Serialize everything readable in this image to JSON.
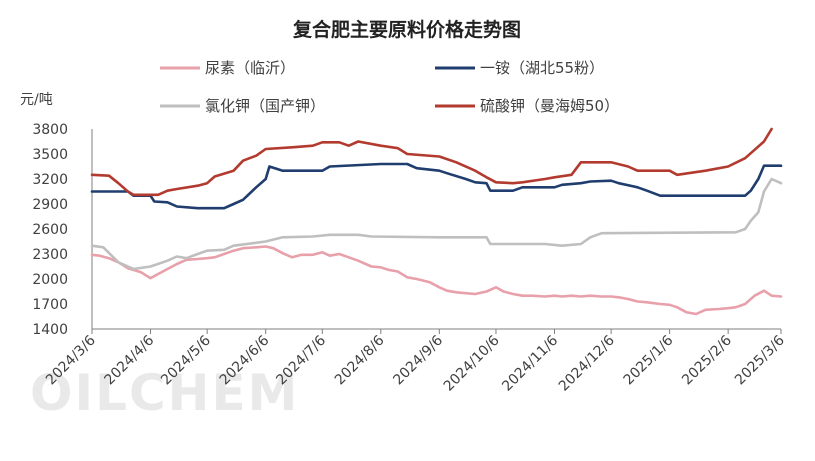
{
  "chart_data": {
    "type": "line",
    "title": "复合肥主要原料价格走势图",
    "ylabel": "元/吨",
    "ylim": [
      1400,
      3800
    ],
    "yticks": [
      1400,
      1700,
      2000,
      2300,
      2600,
      2900,
      3200,
      3500,
      3800
    ],
    "xlim": [
      "2024-03-06",
      "2025-03-06"
    ],
    "xticks": [
      "2024/3/6",
      "2024/4/6",
      "2024/5/6",
      "2024/6/6",
      "2024/7/6",
      "2024/8/6",
      "2024/9/6",
      "2024/10/6",
      "2024/11/6",
      "2024/12/6",
      "2025/1/6",
      "2025/2/6",
      "2025/3/6"
    ],
    "legend_position": "top",
    "grid": false,
    "watermark": "OILCHEM",
    "series": [
      {
        "name": "尿素（临沂）",
        "color": "#e8a0aa",
        "points": [
          [
            "2024-03-06",
            2290
          ],
          [
            "2024-03-10",
            2280
          ],
          [
            "2024-03-15",
            2250
          ],
          [
            "2024-03-20",
            2200
          ],
          [
            "2024-03-25",
            2130
          ],
          [
            "2024-04-01",
            2080
          ],
          [
            "2024-04-06",
            2010
          ],
          [
            "2024-04-10",
            2060
          ],
          [
            "2024-04-15",
            2120
          ],
          [
            "2024-04-20",
            2180
          ],
          [
            "2024-04-25",
            2230
          ],
          [
            "2024-05-01",
            2240
          ],
          [
            "2024-05-06",
            2250
          ],
          [
            "2024-05-10",
            2260
          ],
          [
            "2024-05-15",
            2300
          ],
          [
            "2024-05-20",
            2340
          ],
          [
            "2024-05-25",
            2370
          ],
          [
            "2024-06-01",
            2380
          ],
          [
            "2024-06-06",
            2390
          ],
          [
            "2024-06-10",
            2370
          ],
          [
            "2024-06-15",
            2310
          ],
          [
            "2024-06-20",
            2260
          ],
          [
            "2024-06-25",
            2290
          ],
          [
            "2024-07-01",
            2290
          ],
          [
            "2024-07-06",
            2320
          ],
          [
            "2024-07-10",
            2280
          ],
          [
            "2024-07-15",
            2300
          ],
          [
            "2024-07-20",
            2260
          ],
          [
            "2024-07-25",
            2220
          ],
          [
            "2024-08-01",
            2150
          ],
          [
            "2024-08-06",
            2140
          ],
          [
            "2024-08-10",
            2110
          ],
          [
            "2024-08-15",
            2090
          ],
          [
            "2024-08-20",
            2020
          ],
          [
            "2024-08-25",
            2000
          ],
          [
            "2024-09-01",
            1960
          ],
          [
            "2024-09-06",
            1900
          ],
          [
            "2024-09-10",
            1860
          ],
          [
            "2024-09-15",
            1840
          ],
          [
            "2024-09-20",
            1830
          ],
          [
            "2024-09-25",
            1820
          ],
          [
            "2024-10-01",
            1850
          ],
          [
            "2024-10-06",
            1900
          ],
          [
            "2024-10-10",
            1850
          ],
          [
            "2024-10-15",
            1820
          ],
          [
            "2024-10-20",
            1800
          ],
          [
            "2024-10-25",
            1800
          ],
          [
            "2024-11-01",
            1790
          ],
          [
            "2024-11-06",
            1800
          ],
          [
            "2024-11-10",
            1790
          ],
          [
            "2024-11-15",
            1800
          ],
          [
            "2024-11-20",
            1790
          ],
          [
            "2024-11-25",
            1800
          ],
          [
            "2024-12-01",
            1790
          ],
          [
            "2024-12-06",
            1790
          ],
          [
            "2024-12-10",
            1780
          ],
          [
            "2024-12-15",
            1760
          ],
          [
            "2024-12-20",
            1730
          ],
          [
            "2024-12-25",
            1720
          ],
          [
            "2025-01-01",
            1700
          ],
          [
            "2025-01-06",
            1690
          ],
          [
            "2025-01-10",
            1660
          ],
          [
            "2025-01-15",
            1600
          ],
          [
            "2025-01-20",
            1580
          ],
          [
            "2025-01-25",
            1630
          ],
          [
            "2025-02-01",
            1640
          ],
          [
            "2025-02-06",
            1650
          ],
          [
            "2025-02-10",
            1660
          ],
          [
            "2025-02-15",
            1700
          ],
          [
            "2025-02-20",
            1800
          ],
          [
            "2025-02-25",
            1860
          ],
          [
            "2025-03-01",
            1800
          ],
          [
            "2025-03-06",
            1790
          ]
        ]
      },
      {
        "name": "一铵（湖北55粉）",
        "color": "#1f3d6e",
        "points": [
          [
            "2024-03-06",
            3050
          ],
          [
            "2024-03-25",
            3050
          ],
          [
            "2024-03-28",
            3000
          ],
          [
            "2024-04-06",
            3000
          ],
          [
            "2024-04-08",
            2930
          ],
          [
            "2024-04-15",
            2920
          ],
          [
            "2024-04-20",
            2870
          ],
          [
            "2024-05-01",
            2850
          ],
          [
            "2024-05-15",
            2850
          ],
          [
            "2024-05-20",
            2900
          ],
          [
            "2024-05-25",
            2950
          ],
          [
            "2024-06-01",
            3100
          ],
          [
            "2024-06-06",
            3200
          ],
          [
            "2024-06-08",
            3350
          ],
          [
            "2024-06-15",
            3300
          ],
          [
            "2024-07-06",
            3300
          ],
          [
            "2024-07-10",
            3350
          ],
          [
            "2024-08-06",
            3380
          ],
          [
            "2024-08-20",
            3380
          ],
          [
            "2024-08-25",
            3330
          ],
          [
            "2024-09-06",
            3300
          ],
          [
            "2024-09-10",
            3270
          ],
          [
            "2024-09-20",
            3200
          ],
          [
            "2024-09-25",
            3160
          ],
          [
            "2024-10-01",
            3150
          ],
          [
            "2024-10-03",
            3060
          ],
          [
            "2024-10-15",
            3060
          ],
          [
            "2024-10-20",
            3100
          ],
          [
            "2024-11-06",
            3100
          ],
          [
            "2024-11-10",
            3130
          ],
          [
            "2024-11-20",
            3150
          ],
          [
            "2024-11-25",
            3170
          ],
          [
            "2024-12-06",
            3180
          ],
          [
            "2024-12-10",
            3150
          ],
          [
            "2024-12-20",
            3100
          ],
          [
            "2024-12-25",
            3060
          ],
          [
            "2025-01-01",
            3000
          ],
          [
            "2025-02-15",
            3000
          ],
          [
            "2025-02-18",
            3060
          ],
          [
            "2025-02-22",
            3200
          ],
          [
            "2025-02-25",
            3360
          ],
          [
            "2025-03-06",
            3360
          ]
        ]
      },
      {
        "name": "氯化钾（国产钾）",
        "color": "#bfbfbf",
        "points": [
          [
            "2024-03-06",
            2400
          ],
          [
            "2024-03-12",
            2380
          ],
          [
            "2024-03-20",
            2200
          ],
          [
            "2024-03-28",
            2120
          ],
          [
            "2024-04-06",
            2150
          ],
          [
            "2024-04-15",
            2220
          ],
          [
            "2024-04-20",
            2270
          ],
          [
            "2024-04-25",
            2250
          ],
          [
            "2024-05-01",
            2300
          ],
          [
            "2024-05-06",
            2340
          ],
          [
            "2024-05-15",
            2350
          ],
          [
            "2024-05-20",
            2400
          ],
          [
            "2024-06-06",
            2450
          ],
          [
            "2024-06-15",
            2500
          ],
          [
            "2024-07-01",
            2510
          ],
          [
            "2024-07-10",
            2530
          ],
          [
            "2024-07-25",
            2530
          ],
          [
            "2024-08-01",
            2510
          ],
          [
            "2024-09-06",
            2500
          ],
          [
            "2024-10-01",
            2500
          ],
          [
            "2024-10-03",
            2420
          ],
          [
            "2024-11-01",
            2420
          ],
          [
            "2024-11-10",
            2400
          ],
          [
            "2024-11-20",
            2420
          ],
          [
            "2024-11-25",
            2500
          ],
          [
            "2024-12-01",
            2550
          ],
          [
            "2025-02-10",
            2560
          ],
          [
            "2025-02-15",
            2600
          ],
          [
            "2025-02-18",
            2700
          ],
          [
            "2025-02-22",
            2800
          ],
          [
            "2025-02-25",
            3050
          ],
          [
            "2025-03-01",
            3200
          ],
          [
            "2025-03-06",
            3150
          ]
        ]
      },
      {
        "name": "硫酸钾（曼海姆50）",
        "color": "#b23a2e",
        "points": [
          [
            "2024-03-06",
            3250
          ],
          [
            "2024-03-15",
            3240
          ],
          [
            "2024-03-20",
            3150
          ],
          [
            "2024-03-25",
            3050
          ],
          [
            "2024-03-28",
            3010
          ],
          [
            "2024-04-10",
            3010
          ],
          [
            "2024-04-15",
            3060
          ],
          [
            "2024-04-20",
            3080
          ],
          [
            "2024-05-01",
            3120
          ],
          [
            "2024-05-06",
            3150
          ],
          [
            "2024-05-10",
            3230
          ],
          [
            "2024-05-20",
            3300
          ],
          [
            "2024-05-25",
            3420
          ],
          [
            "2024-06-01",
            3480
          ],
          [
            "2024-06-06",
            3560
          ],
          [
            "2024-06-20",
            3580
          ],
          [
            "2024-07-01",
            3600
          ],
          [
            "2024-07-06",
            3640
          ],
          [
            "2024-07-15",
            3640
          ],
          [
            "2024-07-20",
            3600
          ],
          [
            "2024-07-25",
            3650
          ],
          [
            "2024-08-06",
            3600
          ],
          [
            "2024-08-15",
            3570
          ],
          [
            "2024-08-20",
            3500
          ],
          [
            "2024-09-06",
            3470
          ],
          [
            "2024-09-15",
            3400
          ],
          [
            "2024-09-25",
            3300
          ],
          [
            "2024-10-01",
            3220
          ],
          [
            "2024-10-06",
            3160
          ],
          [
            "2024-10-15",
            3150
          ],
          [
            "2024-10-20",
            3160
          ],
          [
            "2024-11-01",
            3200
          ],
          [
            "2024-11-06",
            3220
          ],
          [
            "2024-11-15",
            3250
          ],
          [
            "2024-11-20",
            3400
          ],
          [
            "2024-12-06",
            3400
          ],
          [
            "2024-12-15",
            3350
          ],
          [
            "2024-12-20",
            3300
          ],
          [
            "2025-01-06",
            3300
          ],
          [
            "2025-01-10",
            3250
          ],
          [
            "2025-01-25",
            3300
          ],
          [
            "2025-02-06",
            3350
          ],
          [
            "2025-02-15",
            3450
          ],
          [
            "2025-02-20",
            3550
          ],
          [
            "2025-02-25",
            3650
          ],
          [
            "2025-03-01",
            3800
          ]
        ]
      }
    ]
  }
}
